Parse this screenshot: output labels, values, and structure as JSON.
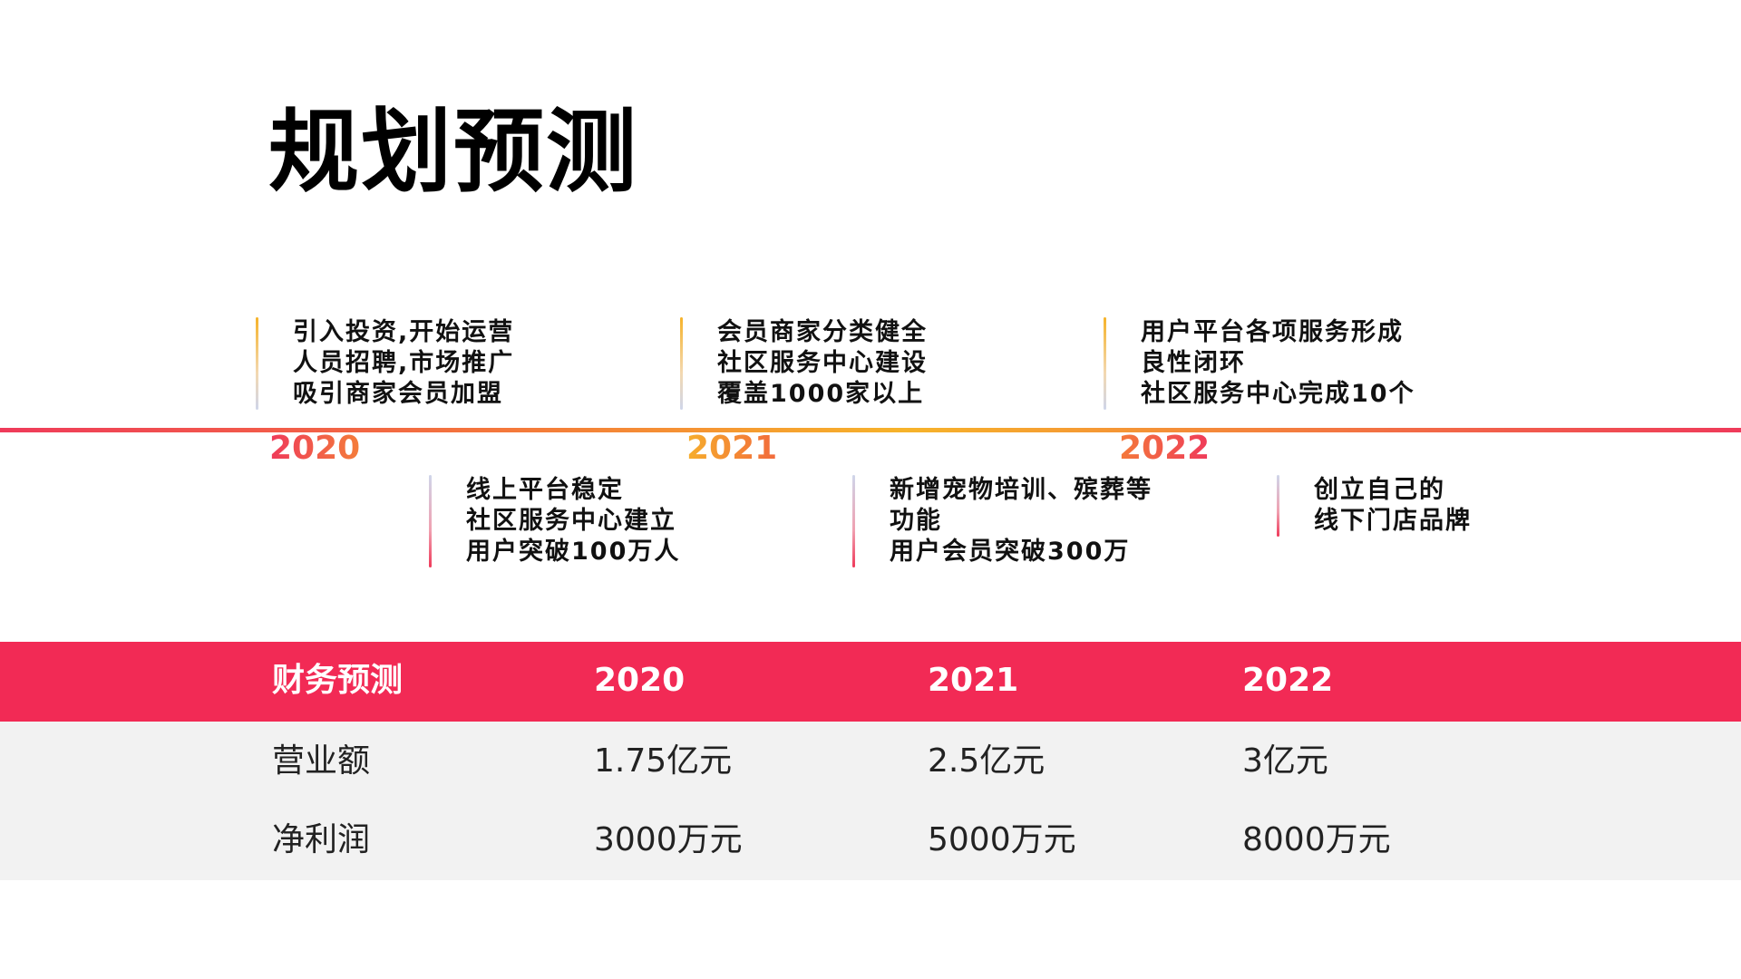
{
  "title": "规划预测",
  "timeline": {
    "years": [
      "2020",
      "2021",
      "2022"
    ],
    "events": [
      {
        "lines": [
          "引入投资,开始运营",
          "人员招聘,市场推广",
          "吸引商家会员加盟"
        ]
      },
      {
        "lines": [
          "会员商家分类健全",
          "社区服务中心建设",
          "覆盖1000家以上"
        ]
      },
      {
        "lines": [
          "用户平台各项服务形成",
          "良性闭环",
          "社区服务中心完成10个"
        ]
      },
      {
        "lines": [
          "线上平台稳定",
          "社区服务中心建立",
          "用户突破100万人"
        ]
      },
      {
        "lines": [
          "新增宠物培训、殡葬等",
          "功能",
          "用户会员突破300万"
        ]
      },
      {
        "lines": [
          "创立自己的",
          "线下门店品牌"
        ]
      }
    ]
  },
  "finance": {
    "headers": [
      "财务预测",
      "2020",
      "2021",
      "2022"
    ],
    "rows": [
      [
        "营业额",
        "1.75亿元",
        "2.5亿元",
        "3亿元"
      ],
      [
        "净利润",
        "3000万元",
        "5000万元",
        "8000万元"
      ]
    ]
  },
  "colors": {
    "accent": "#f22a55",
    "timeline_mid": "#f6b32a",
    "table_body_bg": "#f2f2f2"
  }
}
